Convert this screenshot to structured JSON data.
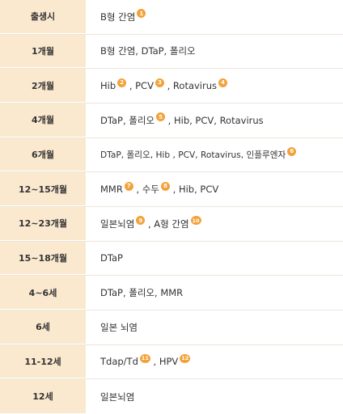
{
  "colors": {
    "age_bg": "#fbe9cf",
    "badge": "#f3a23a",
    "divider": "#ece6dc"
  },
  "rows": [
    {
      "age": "출생시",
      "segments": [
        {
          "text": "B형 간염",
          "badge": "1"
        }
      ]
    },
    {
      "age": "1개월",
      "segments": [
        {
          "text": "B형 간염, DTaP, 폴리오"
        }
      ]
    },
    {
      "age": "2개월",
      "segments": [
        {
          "text": "Hib",
          "badge": "2"
        },
        {
          "text": " , PCV",
          "badge": "3"
        },
        {
          "text": " , Rotavirus",
          "badge": "4"
        }
      ]
    },
    {
      "age": "4개월",
      "segments": [
        {
          "text": "DTaP, 폴리오",
          "badge": "5"
        },
        {
          "text": " , Hib, PCV, Rotavirus"
        }
      ]
    },
    {
      "age": "6개월",
      "segments": [
        {
          "text": "DTaP, 폴리오, Hib , PCV, Rotavirus, 인플루엔자",
          "badge": "6"
        }
      ]
    },
    {
      "age": "12~15개월",
      "segments": [
        {
          "text": "MMR",
          "badge": "7"
        },
        {
          "text": " , 수두",
          "badge": "8"
        },
        {
          "text": " , Hib, PCV"
        }
      ]
    },
    {
      "age": "12~23개월",
      "segments": [
        {
          "text": "일본뇌염",
          "badge": "9"
        },
        {
          "text": " , A형 간염",
          "badge": "10"
        }
      ]
    },
    {
      "age": "15~18개월",
      "segments": [
        {
          "text": "DTaP"
        }
      ]
    },
    {
      "age": "4~6세",
      "segments": [
        {
          "text": "DTaP, 폴리오, MMR"
        }
      ]
    },
    {
      "age": "6세",
      "segments": [
        {
          "text": "일본 뇌염"
        }
      ]
    },
    {
      "age": "11-12세",
      "segments": [
        {
          "text": "Tdap/Td",
          "badge": "11"
        },
        {
          "text": " , HPV",
          "badge": "12"
        }
      ]
    },
    {
      "age": "12세",
      "segments": [
        {
          "text": "일본뇌염"
        }
      ]
    }
  ]
}
